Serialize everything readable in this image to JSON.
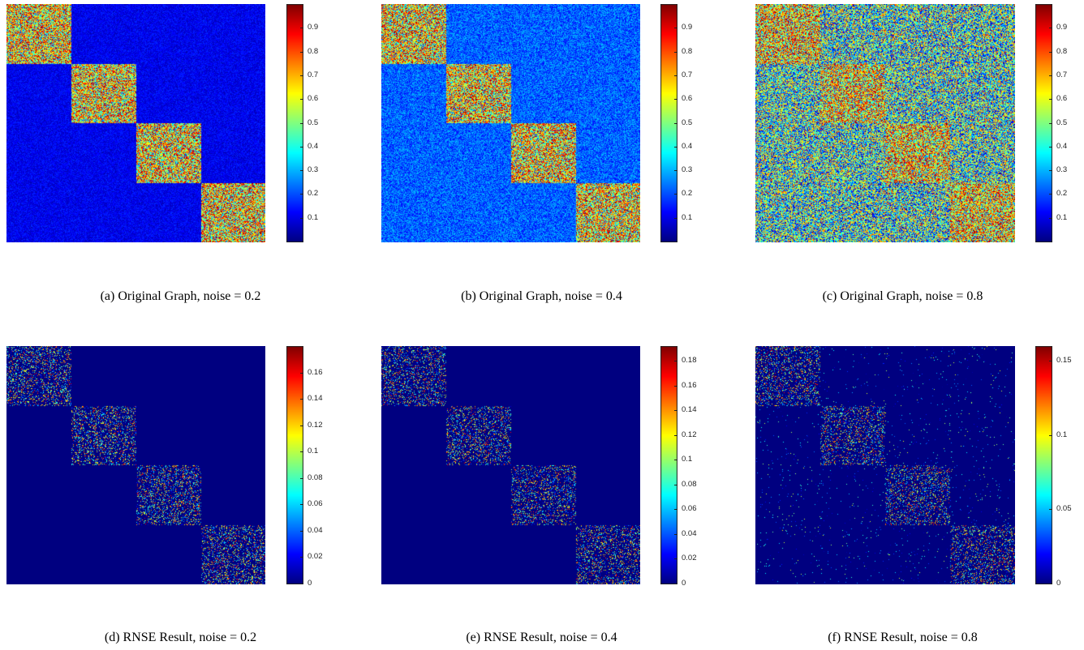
{
  "figure": {
    "colormap": "jet",
    "matrix_structure": "4 diagonal blocks of equal size; block (dense, high values) vs off-block (noise)",
    "panels": [
      {
        "id": "a",
        "caption": "(a)  Original Graph, noise = 0.2",
        "colorbar_ticks": [
          "0.1",
          "0.2",
          "0.3",
          "0.4",
          "0.5",
          "0.6",
          "0.7",
          "0.8",
          "0.9"
        ],
        "tick_values": [
          0.1,
          0.2,
          0.3,
          0.4,
          0.5,
          0.6,
          0.7,
          0.8,
          0.9
        ],
        "cmin": 0.0,
        "cmax": 1.0,
        "block_level": 0.95,
        "block_spread": 0.55,
        "off_level": 0.11,
        "off_spread": 0.06,
        "block_sparsity": 0.0,
        "off_sparsity": 0.0
      },
      {
        "id": "b",
        "caption": "(b)  Original Graph, noise = 0.4",
        "colorbar_ticks": [
          "0.1",
          "0.2",
          "0.3",
          "0.4",
          "0.5",
          "0.6",
          "0.7",
          "0.8",
          "0.9"
        ],
        "tick_values": [
          0.1,
          0.2,
          0.3,
          0.4,
          0.5,
          0.6,
          0.7,
          0.8,
          0.9
        ],
        "cmin": 0.0,
        "cmax": 1.0,
        "block_level": 0.93,
        "block_spread": 0.55,
        "off_level": 0.22,
        "off_spread": 0.1,
        "block_sparsity": 0.0,
        "off_sparsity": 0.0
      },
      {
        "id": "c",
        "caption": "(c)  Original Graph, noise = 0.8",
        "colorbar_ticks": [
          "0.1",
          "0.2",
          "0.3",
          "0.4",
          "0.5",
          "0.6",
          "0.7",
          "0.8",
          "0.9"
        ],
        "tick_values": [
          0.1,
          0.2,
          0.3,
          0.4,
          0.5,
          0.6,
          0.7,
          0.8,
          0.9
        ],
        "cmin": 0.0,
        "cmax": 1.0,
        "block_level": 0.8,
        "block_spread": 0.5,
        "off_level": 0.42,
        "off_spread": 0.4,
        "block_sparsity": 0.0,
        "off_sparsity": 0.0
      },
      {
        "id": "d",
        "caption": "(d)  RNSE Result, noise = 0.2",
        "colorbar_ticks": [
          "0",
          "0.02",
          "0.04",
          "0.06",
          "0.08",
          "0.1",
          "0.12",
          "0.14",
          "0.16"
        ],
        "tick_values": [
          0,
          0.02,
          0.04,
          0.06,
          0.08,
          0.1,
          0.12,
          0.14,
          0.16
        ],
        "cmin": 0.0,
        "cmax": 0.18,
        "block_level": 0.08,
        "block_spread": 0.1,
        "off_level": 0.0,
        "off_spread": 0.0,
        "block_sparsity": 0.72,
        "off_sparsity": 1.0
      },
      {
        "id": "e",
        "caption": "(e)  RNSE Result, noise = 0.4",
        "colorbar_ticks": [
          "0",
          "0.02",
          "0.04",
          "0.06",
          "0.08",
          "0.1",
          "0.12",
          "0.14",
          "0.16",
          "0.18"
        ],
        "tick_values": [
          0,
          0.02,
          0.04,
          0.06,
          0.08,
          0.1,
          0.12,
          0.14,
          0.16,
          0.18
        ],
        "cmin": 0.0,
        "cmax": 0.192,
        "block_level": 0.08,
        "block_spread": 0.1,
        "off_level": 0.0,
        "off_spread": 0.0,
        "block_sparsity": 0.75,
        "off_sparsity": 1.0
      },
      {
        "id": "f",
        "caption": "(f)  RNSE Result, noise = 0.8",
        "colorbar_ticks": [
          "0",
          "0.05",
          "0.1",
          "0.15"
        ],
        "tick_values": [
          0,
          0.05,
          0.1,
          0.15
        ],
        "cmin": 0.0,
        "cmax": 0.16,
        "block_level": 0.07,
        "block_spread": 0.08,
        "off_level": 0.01,
        "off_spread": 0.02,
        "block_sparsity": 0.75,
        "off_sparsity": 0.985
      }
    ]
  },
  "chart_data": [
    {
      "type": "heatmap",
      "title": "",
      "xlabel": "",
      "ylabel": "",
      "caption": "(a)  Original Graph, noise = 0.2",
      "colorbar_range": [
        0,
        1
      ],
      "blocks": 4,
      "in_block_mean": 0.6,
      "off_block_mean": 0.1
    },
    {
      "type": "heatmap",
      "title": "",
      "xlabel": "",
      "ylabel": "",
      "caption": "(b)  Original Graph, noise = 0.4",
      "colorbar_range": [
        0,
        1
      ],
      "blocks": 4,
      "in_block_mean": 0.6,
      "off_block_mean": 0.2
    },
    {
      "type": "heatmap",
      "title": "",
      "xlabel": "",
      "ylabel": "",
      "caption": "(c)  Original Graph, noise = 0.8",
      "colorbar_range": [
        0,
        1
      ],
      "blocks": 4,
      "in_block_mean": 0.55,
      "off_block_mean": 0.4
    },
    {
      "type": "heatmap",
      "title": "",
      "xlabel": "",
      "ylabel": "",
      "caption": "(d)  RNSE Result, noise = 0.2",
      "colorbar_range": [
        0,
        0.18
      ],
      "blocks": 4,
      "in_block_mean": 0.02,
      "off_block_mean": 0.0
    },
    {
      "type": "heatmap",
      "title": "",
      "xlabel": "",
      "ylabel": "",
      "caption": "(e)  RNSE Result, noise = 0.4",
      "colorbar_range": [
        0,
        0.19
      ],
      "blocks": 4,
      "in_block_mean": 0.02,
      "off_block_mean": 0.0
    },
    {
      "type": "heatmap",
      "title": "",
      "xlabel": "",
      "ylabel": "",
      "caption": "(f)  RNSE Result, noise = 0.8",
      "colorbar_range": [
        0,
        0.16
      ],
      "blocks": 4,
      "in_block_mean": 0.018,
      "off_block_mean": 0.0
    }
  ]
}
